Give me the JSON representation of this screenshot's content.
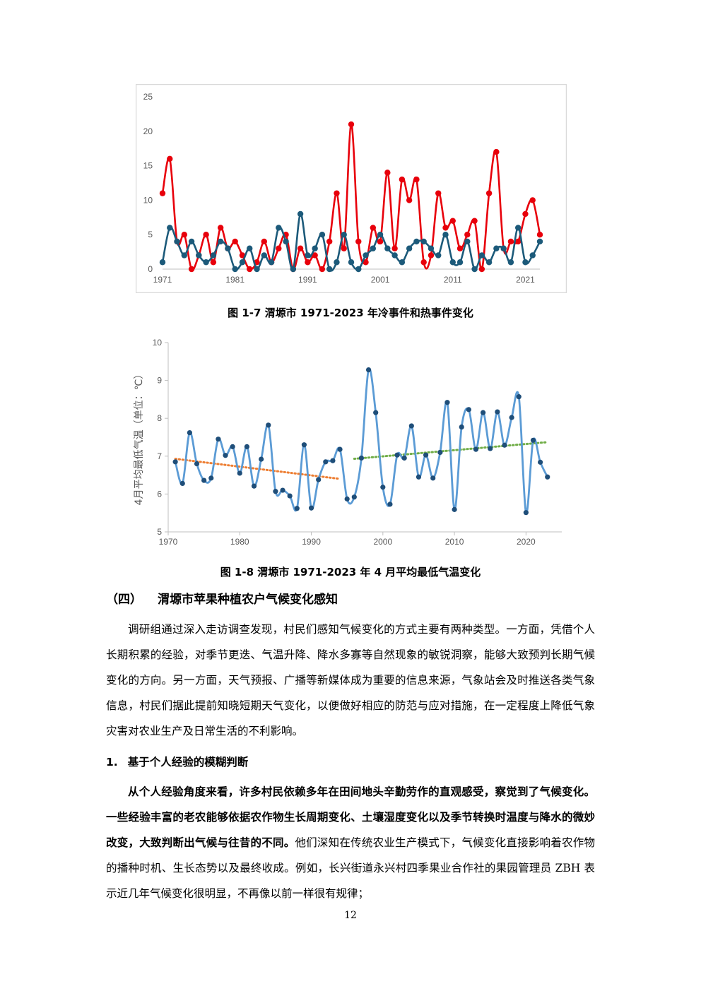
{
  "figure1": {
    "caption": "图 1-7 渭塬市 1971-2023 年冷事件和热事件变化",
    "chart_data": {
      "type": "line",
      "title": "",
      "xlabel": "",
      "ylabel": "",
      "ylim": [
        0,
        25
      ],
      "yticks": [
        0,
        5,
        10,
        15,
        20,
        25
      ],
      "xticks": [
        1971,
        1981,
        1991,
        2001,
        2011,
        2021
      ],
      "xlim": [
        1971,
        2023
      ],
      "grid": false,
      "legend": "none",
      "x_start": 1971,
      "series": [
        {
          "color": "#e8000b",
          "values": [
            11,
            16,
            4,
            5,
            0,
            2,
            5,
            1,
            6,
            3,
            4,
            2,
            0,
            1,
            4,
            1,
            3,
            5,
            0,
            3,
            1,
            2,
            0,
            4,
            11,
            3,
            21,
            4,
            1,
            6,
            4,
            14,
            3,
            13,
            10,
            13,
            1,
            2,
            11,
            6,
            7,
            3,
            5,
            7,
            0,
            11,
            17,
            3,
            4,
            4,
            8,
            10,
            5
          ]
        },
        {
          "color": "#1c5a7a",
          "values": [
            1,
            6,
            4,
            2,
            4,
            2,
            1,
            2,
            4,
            3,
            0,
            1,
            3,
            0,
            2,
            1,
            6,
            4,
            0,
            8,
            2,
            3,
            5,
            0,
            1,
            5,
            1,
            0,
            2,
            3,
            5,
            3,
            2,
            1,
            3,
            4,
            4,
            3,
            2,
            5,
            1,
            1,
            4,
            0,
            2,
            1,
            3,
            3,
            1,
            6,
            1,
            2,
            4
          ]
        }
      ]
    }
  },
  "figure2": {
    "caption": "图 1-8 渭塬市 1971-2023 年 4 月平均最低气温变化",
    "chart_data": {
      "type": "line",
      "title": "",
      "xlabel": "",
      "ylabel": "4月平均最低气温（单位：℃）",
      "ylim": [
        5,
        10
      ],
      "yticks": [
        5,
        6,
        7,
        8,
        9,
        10
      ],
      "xticks": [
        1970,
        1980,
        1990,
        2000,
        2010,
        2020
      ],
      "xlim": [
        1970,
        2025
      ],
      "grid": false,
      "legend": "none",
      "x_start": 1971,
      "series": [
        {
          "color": "#5b9bd5",
          "marker_color": "#1f4e79",
          "values": [
            6.85,
            6.28,
            7.62,
            6.8,
            6.36,
            6.42,
            7.45,
            7.02,
            7.25,
            6.55,
            7.25,
            6.21,
            6.92,
            7.82,
            6.07,
            6.1,
            5.95,
            5.62,
            7.3,
            5.63,
            6.38,
            6.85,
            6.88,
            7.18,
            5.87,
            5.92,
            6.95,
            9.28,
            8.15,
            6.18,
            5.73,
            7.03,
            6.95,
            7.8,
            6.45,
            7.03,
            6.42,
            7.1,
            8.42,
            5.59,
            7.77,
            8.23,
            7.18,
            8.15,
            7.2,
            8.17,
            7.29,
            8.02,
            8.57,
            5.51,
            7.42,
            6.84,
            6.45
          ]
        }
      ],
      "trendlines": [
        {
          "color": "#ed7d31",
          "x": [
            1971,
            1994
          ],
          "y": [
            6.93,
            6.4
          ]
        },
        {
          "color": "#70ad47",
          "x": [
            1996,
            2023
          ],
          "y": [
            6.93,
            7.37
          ]
        }
      ]
    }
  },
  "section": {
    "number": "（四）",
    "title": "渭塬市苹果种植农户气候变化感知"
  },
  "intro_paragraph": "调研组通过深入走访调查发现，村民们感知气候变化的方式主要有两种类型。一方面，凭借个人长期积累的经验，对季节更迭、气温升降、降水多寡等自然现象的敏锐洞察，能够大致预判长期气候变化的方向。另一方面，天气预报、广播等新媒体成为重要的信息来源，气象站会及时推送各类气象信息，村民们据此提前知晓短期天气变化，以便做好相应的防范与应对措施，在一定程度上降低气象灾害对农业生产及日常生活的不利影响。",
  "subsection": {
    "number": "1.",
    "title": "基于个人经验的模糊判断"
  },
  "body_paragraph": {
    "bold_text": "从个人经验角度来看，许多村民依赖多年在田间地头辛勤劳作的直观感受，察觉到了气候变化。一些经验丰富的老农能够依据农作物生长周期变化、土壤湿度变化以及季节转换时温度与降水的微妙改变，大致判断出气候与往昔的不同。",
    "normal_text": "他们深知在传统农业生产模式下，气候变化直接影响着农作物的播种时机、生长态势以及最终收成。例如，长兴街道永兴村四季果业合作社的果园管理员 ZBH 表示近几年气候变化很明显，不再像以前一样很有规律；"
  },
  "page_number": "12"
}
